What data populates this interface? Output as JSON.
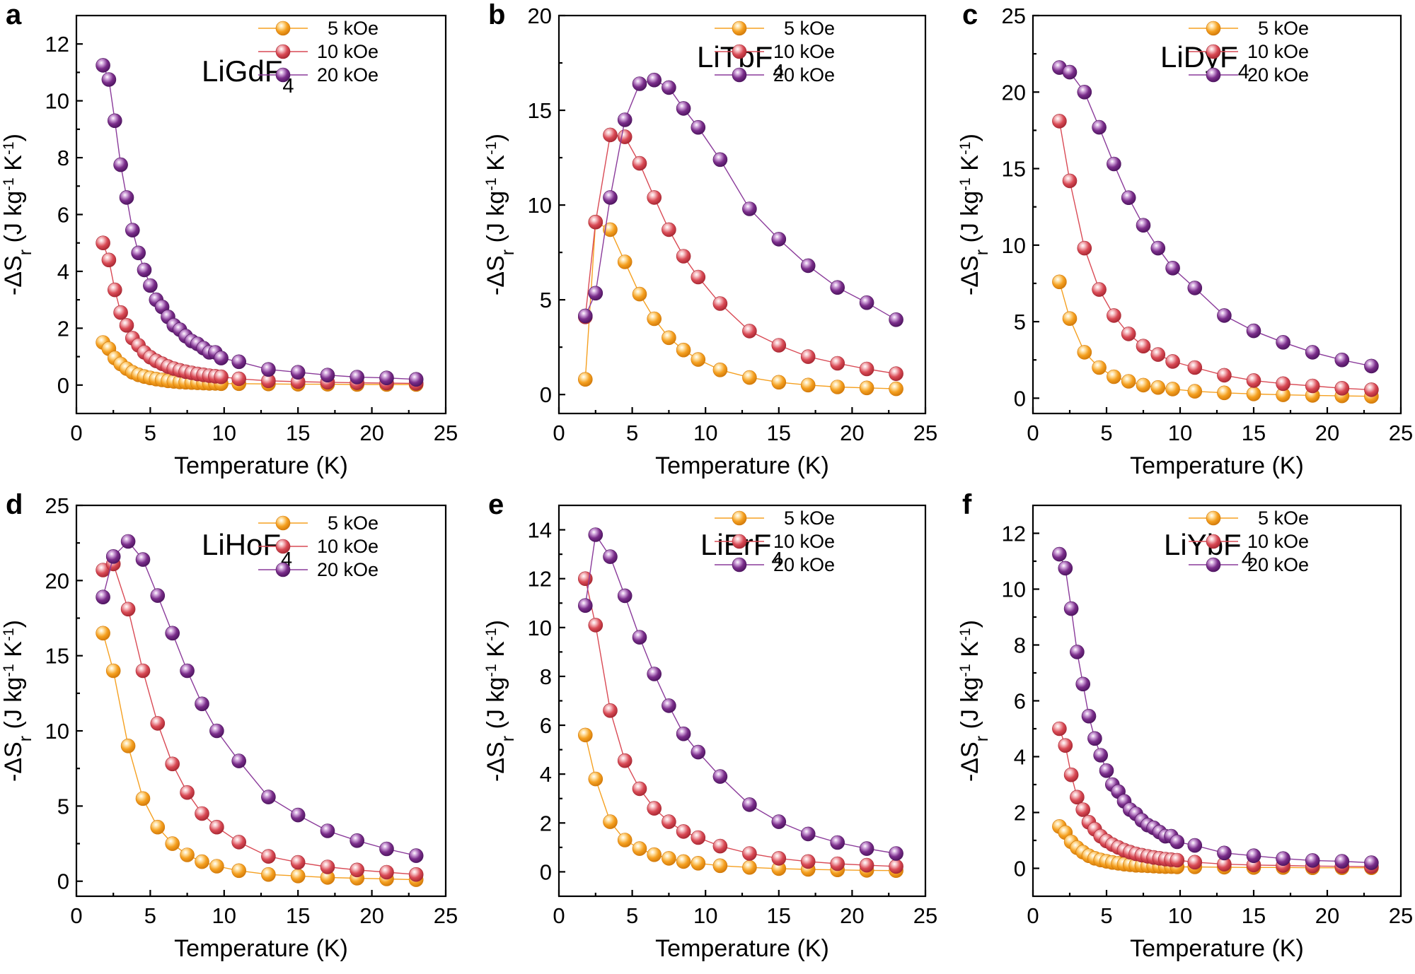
{
  "chart_data": [
    {
      "type": "scatter",
      "panel": "a",
      "compound": {
        "base": "LiGdF",
        "sub": "4"
      },
      "xlabel": "Temperature (K)",
      "ylabel": {
        "pre": "-ΔS",
        "sub": "r",
        "mid": " (J kg",
        "exp1": "-1",
        "mid2": " K",
        "exp2": "-1",
        "post": ")"
      },
      "xlim": [
        0,
        25
      ],
      "ylim": [
        -1,
        13
      ],
      "xticks": [
        0,
        5,
        10,
        15,
        20,
        25
      ],
      "yticks": [
        0,
        2,
        4,
        6,
        8,
        10,
        12
      ],
      "legend_position": "top-left-of-title",
      "x": [
        1.8,
        2.2,
        2.6,
        3.0,
        3.4,
        3.8,
        4.2,
        4.6,
        5.0,
        5.4,
        5.8,
        6.2,
        6.6,
        7.0,
        7.4,
        7.8,
        8.2,
        8.6,
        9.0,
        9.4,
        9.8,
        11,
        13,
        15,
        17,
        19,
        21,
        23
      ],
      "series": [
        {
          "name": "5 kOe",
          "values": [
            1.5,
            1.28,
            0.95,
            0.74,
            0.58,
            0.45,
            0.36,
            0.3,
            0.25,
            0.21,
            0.18,
            0.15,
            0.13,
            0.11,
            0.1,
            0.09,
            0.08,
            0.07,
            0.06,
            0.06,
            0.05,
            0.05,
            0.04,
            0.03,
            0.03,
            0.02,
            0.02,
            0.02
          ]
        },
        {
          "name": "10 kOe",
          "values": [
            5.0,
            4.4,
            3.35,
            2.55,
            2.1,
            1.65,
            1.4,
            1.15,
            0.98,
            0.85,
            0.75,
            0.65,
            0.58,
            0.52,
            0.47,
            0.43,
            0.39,
            0.36,
            0.33,
            0.31,
            0.29,
            0.22,
            0.15,
            0.12,
            0.1,
            0.08,
            0.07,
            0.06
          ]
        },
        {
          "name": "20 kOe",
          "values": [
            11.25,
            10.75,
            9.3,
            7.75,
            6.6,
            5.45,
            4.65,
            4.05,
            3.5,
            3.0,
            2.75,
            2.4,
            2.1,
            1.95,
            1.72,
            1.55,
            1.45,
            1.3,
            1.15,
            1.15,
            0.95,
            0.82,
            0.55,
            0.45,
            0.35,
            0.28,
            0.25,
            0.2
          ]
        }
      ]
    },
    {
      "type": "scatter",
      "panel": "b",
      "compound": {
        "base": "LiTbF",
        "sub": "4"
      },
      "xlabel": "Temperature (K)",
      "ylabel": {
        "pre": "-ΔS",
        "sub": "r",
        "mid": " (J kg",
        "exp1": "-1",
        "mid2": " K",
        "exp2": "-1",
        "post": ")"
      },
      "xlim": [
        0,
        25
      ],
      "ylim": [
        -1,
        20
      ],
      "xticks": [
        0,
        5,
        10,
        15,
        20,
        25
      ],
      "yticks": [
        0,
        5,
        10,
        15,
        20
      ],
      "legend_position": "top-right",
      "x": [
        1.8,
        2.5,
        3.5,
        4.5,
        5.5,
        6.5,
        7.5,
        8.5,
        9.5,
        11,
        13,
        15,
        17,
        19,
        21,
        23
      ],
      "series": [
        {
          "name": "5 kOe",
          "values": [
            0.8,
            9.1,
            8.7,
            7.0,
            5.3,
            4.0,
            3.0,
            2.35,
            1.85,
            1.3,
            0.9,
            0.65,
            0.5,
            0.4,
            0.35,
            0.3
          ]
        },
        {
          "name": "10 kOe",
          "values": [
            4.1,
            9.1,
            13.7,
            13.6,
            12.2,
            10.4,
            8.7,
            7.3,
            6.2,
            4.8,
            3.35,
            2.6,
            2.0,
            1.65,
            1.35,
            1.1
          ]
        },
        {
          "name": "20 kOe",
          "values": [
            4.15,
            5.35,
            10.4,
            14.5,
            16.4,
            16.6,
            16.2,
            15.1,
            14.1,
            12.4,
            9.8,
            8.2,
            6.8,
            5.65,
            4.85,
            3.95
          ]
        }
      ]
    },
    {
      "type": "scatter",
      "panel": "c",
      "compound": {
        "base": "LiDyF",
        "sub": "4"
      },
      "xlabel": "Temperature (K)",
      "ylabel": {
        "pre": "-ΔS",
        "sub": "r",
        "mid": " (J kg",
        "exp1": "-1",
        "mid2": " K",
        "exp2": "-1",
        "post": ")"
      },
      "xlim": [
        0,
        25
      ],
      "ylim": [
        -1,
        25
      ],
      "xticks": [
        0,
        5,
        10,
        15,
        20,
        25
      ],
      "yticks": [
        0,
        5,
        10,
        15,
        20,
        25
      ],
      "legend_position": "top-right",
      "x": [
        1.8,
        2.5,
        3.5,
        4.5,
        5.5,
        6.5,
        7.5,
        8.5,
        9.5,
        11,
        13,
        15,
        17,
        19,
        21,
        23
      ],
      "series": [
        {
          "name": "5 kOe",
          "values": [
            7.6,
            5.2,
            3.0,
            2.0,
            1.4,
            1.1,
            0.85,
            0.7,
            0.6,
            0.45,
            0.35,
            0.28,
            0.22,
            0.18,
            0.15,
            0.12
          ]
        },
        {
          "name": "10 kOe",
          "values": [
            18.1,
            14.2,
            9.8,
            7.1,
            5.4,
            4.2,
            3.4,
            2.85,
            2.4,
            2.0,
            1.5,
            1.15,
            0.95,
            0.8,
            0.65,
            0.55
          ]
        },
        {
          "name": "20 kOe",
          "values": [
            21.6,
            21.3,
            20.0,
            17.7,
            15.3,
            13.1,
            11.3,
            9.8,
            8.5,
            7.2,
            5.4,
            4.4,
            3.65,
            3.0,
            2.5,
            2.1
          ]
        }
      ]
    },
    {
      "type": "scatter",
      "panel": "d",
      "compound": {
        "base": "LiHoF",
        "sub": "4"
      },
      "xlabel": "Temperature (K)",
      "ylabel": {
        "pre": "-ΔS",
        "sub": "r",
        "mid": " (J kg",
        "exp1": "-1",
        "mid2": " K",
        "exp2": "-1",
        "post": ")"
      },
      "xlim": [
        0,
        25
      ],
      "ylim": [
        -1,
        25
      ],
      "xticks": [
        0,
        5,
        10,
        15,
        20,
        25
      ],
      "yticks": [
        0,
        5,
        10,
        15,
        20,
        25
      ],
      "legend_position": "top-right",
      "x": [
        1.8,
        2.5,
        3.5,
        4.5,
        5.5,
        6.5,
        7.5,
        8.5,
        9.5,
        11,
        13,
        15,
        17,
        19,
        21,
        23
      ],
      "series": [
        {
          "name": "5 kOe",
          "values": [
            16.5,
            14.0,
            9.0,
            5.5,
            3.6,
            2.5,
            1.75,
            1.3,
            1.0,
            0.7,
            0.45,
            0.35,
            0.25,
            0.2,
            0.15,
            0.1
          ]
        },
        {
          "name": "10 kOe",
          "values": [
            20.7,
            21.1,
            18.1,
            14.0,
            10.5,
            7.8,
            5.9,
            4.5,
            3.6,
            2.6,
            1.65,
            1.25,
            0.95,
            0.75,
            0.6,
            0.45
          ]
        },
        {
          "name": "20 kOe",
          "values": [
            18.9,
            21.6,
            22.6,
            21.4,
            19.0,
            16.5,
            14.0,
            11.8,
            10.0,
            8.0,
            5.6,
            4.4,
            3.35,
            2.7,
            2.15,
            1.7
          ]
        }
      ]
    },
    {
      "type": "scatter",
      "panel": "e",
      "compound": {
        "base": "LiErF",
        "sub": "4"
      },
      "xlabel": "Temperature (K)",
      "ylabel": {
        "pre": "-ΔS",
        "sub": "r",
        "mid": " (J kg",
        "exp1": "-1",
        "mid2": " K",
        "exp2": "-1",
        "post": ")"
      },
      "xlim": [
        0,
        25
      ],
      "ylim": [
        -1,
        15
      ],
      "xticks": [
        0,
        5,
        10,
        15,
        20,
        25
      ],
      "yticks": [
        0,
        2,
        4,
        6,
        8,
        10,
        12,
        14
      ],
      "legend_position": "top-right",
      "x": [
        1.8,
        2.5,
        3.5,
        4.5,
        5.5,
        6.5,
        7.5,
        8.5,
        9.5,
        11,
        13,
        15,
        17,
        19,
        21,
        23
      ],
      "series": [
        {
          "name": "5 kOe",
          "values": [
            5.6,
            3.8,
            2.05,
            1.3,
            0.95,
            0.7,
            0.55,
            0.42,
            0.35,
            0.25,
            0.18,
            0.13,
            0.1,
            0.08,
            0.06,
            0.05
          ]
        },
        {
          "name": "10 kOe",
          "values": [
            12.0,
            10.1,
            6.6,
            4.55,
            3.4,
            2.6,
            2.05,
            1.65,
            1.4,
            1.05,
            0.75,
            0.55,
            0.42,
            0.33,
            0.27,
            0.22
          ]
        },
        {
          "name": "20 kOe",
          "values": [
            10.9,
            13.8,
            12.9,
            11.3,
            9.6,
            8.1,
            6.8,
            5.65,
            4.9,
            3.9,
            2.75,
            2.05,
            1.55,
            1.2,
            0.95,
            0.75
          ]
        }
      ]
    },
    {
      "type": "scatter",
      "panel": "f",
      "compound": {
        "base": "LiYbF",
        "sub": "4"
      },
      "xlabel": "Temperature (K)",
      "ylabel": {
        "pre": "-ΔS",
        "sub": "r",
        "mid": " (J kg",
        "exp1": "-1",
        "mid2": " K",
        "exp2": "-1",
        "post": ")"
      },
      "xlim": [
        0,
        25
      ],
      "ylim": [
        -1,
        13
      ],
      "xticks": [
        0,
        5,
        10,
        15,
        20,
        25
      ],
      "yticks": [
        0,
        2,
        4,
        6,
        8,
        10,
        12
      ],
      "legend_position": "top-right",
      "x": [
        1.8,
        2.2,
        2.6,
        3.0,
        3.4,
        3.8,
        4.2,
        4.6,
        5.0,
        5.4,
        5.8,
        6.2,
        6.6,
        7.0,
        7.4,
        7.8,
        8.2,
        8.6,
        9.0,
        9.4,
        9.8,
        11,
        13,
        15,
        17,
        19,
        21,
        23
      ],
      "series": [
        {
          "name": "5 kOe",
          "values": [
            1.5,
            1.28,
            0.95,
            0.74,
            0.58,
            0.45,
            0.36,
            0.3,
            0.25,
            0.21,
            0.18,
            0.15,
            0.13,
            0.11,
            0.1,
            0.09,
            0.08,
            0.07,
            0.06,
            0.06,
            0.05,
            0.05,
            0.04,
            0.03,
            0.03,
            0.02,
            0.02,
            0.02
          ]
        },
        {
          "name": "10 kOe",
          "values": [
            5.0,
            4.4,
            3.35,
            2.55,
            2.1,
            1.65,
            1.4,
            1.15,
            0.98,
            0.85,
            0.75,
            0.65,
            0.58,
            0.52,
            0.47,
            0.43,
            0.39,
            0.36,
            0.33,
            0.31,
            0.29,
            0.22,
            0.15,
            0.12,
            0.1,
            0.08,
            0.07,
            0.06
          ]
        },
        {
          "name": "20 kOe",
          "values": [
            11.25,
            10.75,
            9.3,
            7.75,
            6.6,
            5.45,
            4.65,
            4.05,
            3.5,
            3.0,
            2.75,
            2.4,
            2.1,
            1.95,
            1.72,
            1.55,
            1.45,
            1.3,
            1.15,
            1.15,
            0.95,
            0.82,
            0.55,
            0.45,
            0.35,
            0.28,
            0.25,
            0.2
          ]
        }
      ]
    }
  ],
  "colors": {
    "5 kOe": {
      "fill": "#f5a020",
      "dark": "#d27a0a",
      "light": "#ffe3a8",
      "line": "#f5a020"
    },
    "10 kOe": {
      "fill": "#d94a55",
      "dark": "#a82833",
      "light": "#f7c3c7",
      "line": "#d94a55"
    },
    "20 kOe": {
      "fill": "#7a2d8a",
      "dark": "#4e1560",
      "light": "#d4a9de",
      "line": "#8a3a9a"
    }
  }
}
